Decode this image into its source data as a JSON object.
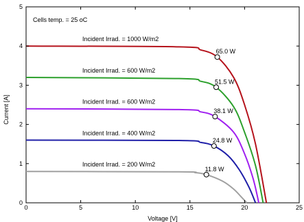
{
  "chart_data": {
    "type": "line",
    "title": "",
    "xlabel": "Voltage [V]",
    "ylabel": "Current [A]",
    "xlim": [
      0,
      25
    ],
    "ylim": [
      0,
      5
    ],
    "x_ticks": [
      "0",
      "5",
      "10",
      "15",
      "20",
      "25"
    ],
    "y_ticks": [
      "0",
      "1",
      "2",
      "3",
      "4",
      "5"
    ],
    "grid": false,
    "legend": "none",
    "annotation": "Cells temp.  = 25 oC",
    "series": [
      {
        "name": "Incident Irrad. = 1000 W/m2",
        "color": "#b5121b",
        "isc": 4.0,
        "voc": 22.0,
        "mpp": {
          "x": 17.5,
          "y": 3.72,
          "label": "65.0 W"
        },
        "points": [
          [
            0,
            4.0
          ],
          [
            14,
            3.98
          ],
          [
            16,
            3.9
          ],
          [
            17.5,
            3.72
          ],
          [
            19,
            3.2
          ],
          [
            20,
            2.5
          ],
          [
            21,
            1.5
          ],
          [
            22,
            0
          ]
        ]
      },
      {
        "name": "Incident Irrad. = 600 W/m2",
        "color": "#2ca02c",
        "isc": 3.2,
        "voc": 21.7,
        "mpp": {
          "x": 17.4,
          "y": 2.95,
          "label": "51.5 W"
        },
        "points": [
          [
            0,
            3.2
          ],
          [
            14,
            3.17
          ],
          [
            16,
            3.1
          ],
          [
            17.4,
            2.95
          ],
          [
            19,
            2.45
          ],
          [
            20,
            1.8
          ],
          [
            21,
            0.95
          ],
          [
            21.7,
            0
          ]
        ]
      },
      {
        "name": "Incident Irrad. = 600 W/m2",
        "color": "#a020f0",
        "isc": 2.4,
        "voc": 21.3,
        "mpp": {
          "x": 17.3,
          "y": 2.2,
          "label": "38.1 W"
        },
        "points": [
          [
            0,
            2.4
          ],
          [
            14,
            2.38
          ],
          [
            16,
            2.32
          ],
          [
            17.3,
            2.2
          ],
          [
            19,
            1.8
          ],
          [
            20,
            1.25
          ],
          [
            20.8,
            0.6
          ],
          [
            21.3,
            0
          ]
        ]
      },
      {
        "name": "Incident Irrad. = 400 W/m2",
        "color": "#1f1fa8",
        "isc": 1.6,
        "voc": 21.0,
        "mpp": {
          "x": 17.2,
          "y": 1.45,
          "label": "24.8 W"
        },
        "points": [
          [
            0,
            1.6
          ],
          [
            14,
            1.59
          ],
          [
            16,
            1.54
          ],
          [
            17.2,
            1.45
          ],
          [
            18.5,
            1.2
          ],
          [
            19.5,
            0.85
          ],
          [
            20.4,
            0.4
          ],
          [
            21.0,
            0
          ]
        ]
      },
      {
        "name": "Incident Irrad. = 200 W/m2",
        "color": "#a0a0a0",
        "isc": 0.8,
        "voc": 20.2,
        "mpp": {
          "x": 16.5,
          "y": 0.72,
          "label": "11.8 W"
        },
        "points": [
          [
            0,
            0.8
          ],
          [
            14,
            0.79
          ],
          [
            15.5,
            0.77
          ],
          [
            16.5,
            0.72
          ],
          [
            18,
            0.55
          ],
          [
            19,
            0.35
          ],
          [
            19.7,
            0.15
          ],
          [
            20.2,
            0
          ]
        ]
      }
    ]
  }
}
